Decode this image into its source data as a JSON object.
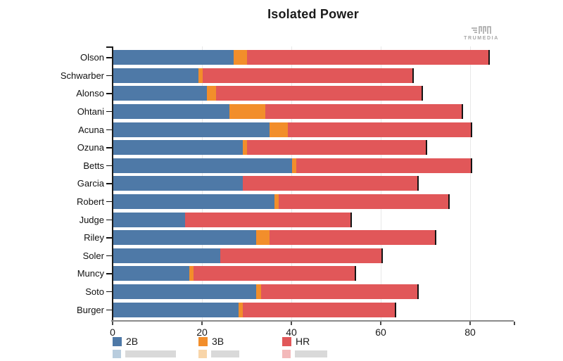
{
  "header": {
    "title": "Isolated Power",
    "logo_text": "TRUMEDIA"
  },
  "chart_data": {
    "type": "bar",
    "orientation": "horizontal",
    "stacked": true,
    "title": "Isolated Power",
    "categories": [
      "Olson",
      "Schwarber",
      "Alonso",
      "Ohtani",
      "Acuna",
      "Ozuna",
      "Betts",
      "Garcia",
      "Robert",
      "Judge",
      "Riley",
      "Soler",
      "Muncy",
      "Soto",
      "Burger"
    ],
    "series": [
      {
        "name": "2B",
        "color": "#4e79a7",
        "values": [
          27,
          19,
          21,
          26,
          35,
          29,
          40,
          29,
          36,
          16,
          32,
          24,
          17,
          32,
          28
        ]
      },
      {
        "name": "3B",
        "color": "#f28e2b",
        "values": [
          3,
          1,
          2,
          8,
          4,
          1,
          1,
          0,
          1,
          0,
          3,
          0,
          1,
          1,
          1
        ]
      },
      {
        "name": "HR",
        "color": "#e15759",
        "values": [
          54,
          47,
          46,
          44,
          41,
          40,
          39,
          39,
          38,
          37,
          37,
          36,
          36,
          35,
          34
        ]
      }
    ],
    "totals": [
      84,
      67,
      69,
      78,
      80,
      70,
      80,
      68,
      75,
      53,
      72,
      60,
      54,
      68,
      63
    ],
    "xlabel": "",
    "ylabel": "",
    "xlim": [
      0,
      90
    ],
    "xticks": [
      0,
      20,
      40,
      60,
      80
    ],
    "grid": true,
    "legend_position": "bottom",
    "bar_end_marker_color": "#141414",
    "axis_colors": {
      "y_axis": "#1a1a1a",
      "x_axis": "#8a8a8a",
      "gridline": "#e8e8e8"
    }
  }
}
